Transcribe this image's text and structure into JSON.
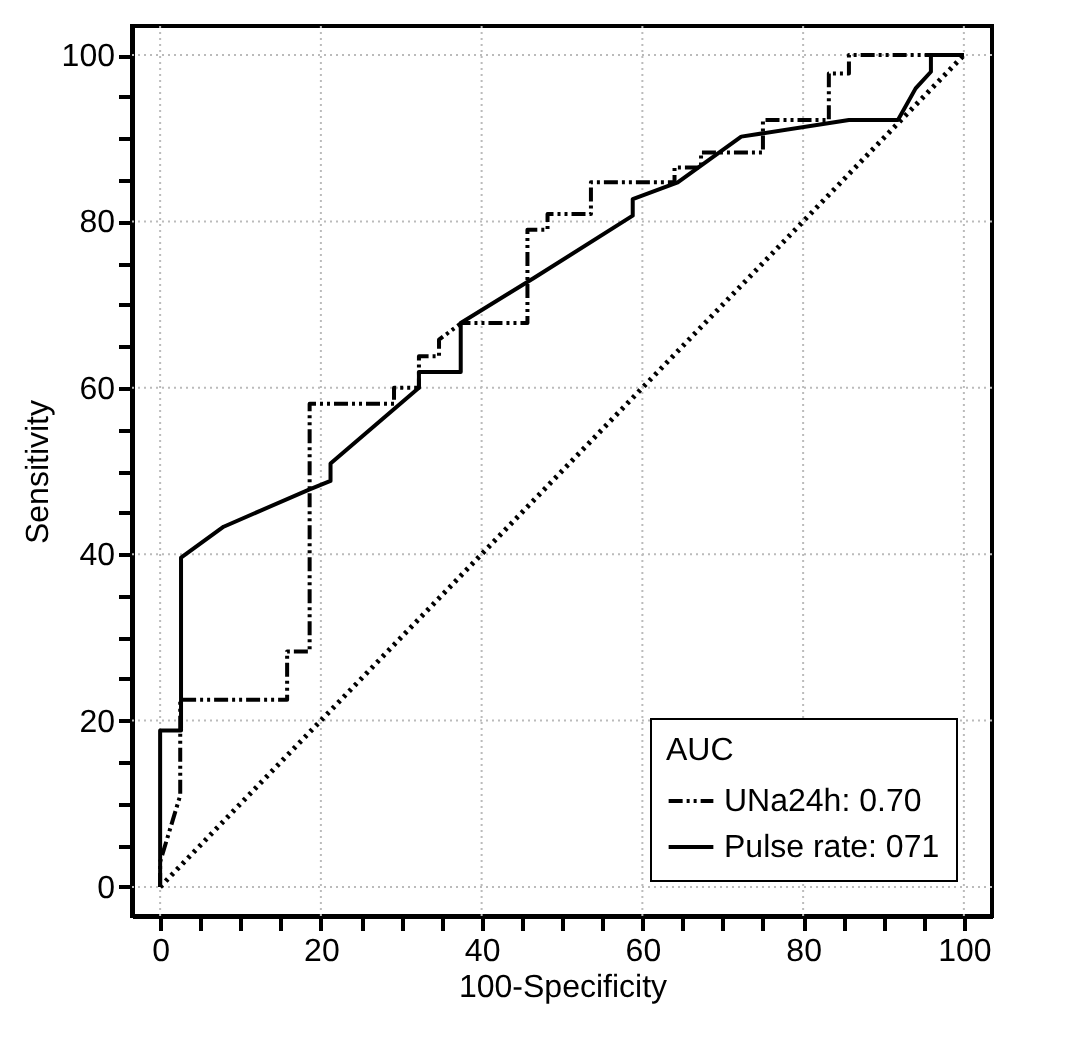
{
  "chart_data": {
    "type": "line",
    "xlabel": "100-Specificity",
    "ylabel": "Sensitivity",
    "legend_title": "AUC",
    "legend": "bottom right",
    "grid": true,
    "xlim": [
      -3.5,
      103.5
    ],
    "ylim": [
      -3.5,
      103.5
    ],
    "xticks": [
      0,
      {
        "value": 5,
        "label": null
      },
      {
        "value": 10,
        "label": null
      },
      {
        "value": 15,
        "label": null
      },
      20,
      {
        "value": 25,
        "label": null
      },
      {
        "value": 30,
        "label": null
      },
      {
        "value": 35,
        "label": null
      },
      40,
      {
        "value": 45,
        "label": null
      },
      {
        "value": 50,
        "label": null
      },
      {
        "value": 55,
        "label": null
      },
      60,
      {
        "value": 65,
        "label": null
      },
      {
        "value": 70,
        "label": null
      },
      {
        "value": 75,
        "label": null
      },
      80,
      {
        "value": 85,
        "label": null
      },
      {
        "value": 90,
        "label": null
      },
      {
        "value": 95,
        "label": null
      },
      100
    ],
    "yticks": [
      0,
      {
        "value": 5,
        "label": null
      },
      {
        "value": 10,
        "label": null
      },
      {
        "value": 15,
        "label": null
      },
      20,
      {
        "value": 25,
        "label": null
      },
      {
        "value": 30,
        "label": null
      },
      {
        "value": 35,
        "label": null
      },
      40,
      {
        "value": 45,
        "label": null
      },
      {
        "value": 50,
        "label": null
      },
      {
        "value": 55,
        "label": null
      },
      60,
      {
        "value": 65,
        "label": null
      },
      {
        "value": 70,
        "label": null
      },
      {
        "value": 75,
        "label": null
      },
      80,
      {
        "value": 85,
        "label": null
      },
      {
        "value": 90,
        "label": null
      },
      {
        "value": 95,
        "label": null
      },
      100
    ],
    "series": [
      {
        "name": "UNa24h: 0.70",
        "color": "#000000",
        "line_style": "dashdot",
        "x": [
          0,
          0,
          2.5,
          2.5,
          15.8,
          15.8,
          18.6,
          18.6,
          29.1,
          29.1,
          32.2,
          32.2,
          34.7,
          34.7,
          37.5,
          45.7,
          45.7,
          48.2,
          48.2,
          53.6,
          53.6,
          64,
          64,
          67.3,
          67.3,
          75,
          75,
          83.2,
          83.2,
          85.7,
          85.7,
          99,
          100
        ],
        "values": [
          0,
          3,
          11,
          22.5,
          22.5,
          28.3,
          28.3,
          58.1,
          58.1,
          60,
          60,
          63.8,
          63.8,
          65.8,
          67.8,
          67.8,
          79,
          79,
          80.9,
          80.9,
          84.7,
          84.7,
          86.5,
          86.5,
          88.3,
          88.3,
          92.2,
          92.2,
          97.8,
          97.8,
          100,
          100,
          100
        ]
      },
      {
        "name": "Pulse rate: 071",
        "color": "#000000",
        "line_style": "solid",
        "x": [
          0,
          0,
          2.6,
          2.6,
          7.9,
          18.6,
          21.2,
          21.2,
          32.2,
          32.2,
          37.4,
          37.4,
          46.5,
          58.8,
          58.8,
          64.4,
          72.3,
          85.7,
          91.8,
          94,
          95.9,
          95.9,
          100
        ],
        "values": [
          0,
          18.8,
          18.8,
          39.6,
          43.3,
          47.8,
          48.8,
          50.9,
          60,
          61.9,
          61.9,
          67.8,
          73.2,
          80.7,
          82.7,
          84.7,
          90.2,
          92.2,
          92.2,
          96,
          98,
          100,
          100
        ]
      },
      {
        "type": "line",
        "color": "#000000",
        "line_style": "dotted",
        "x": [
          0,
          100
        ],
        "values": [
          0,
          100
        ]
      }
    ]
  }
}
